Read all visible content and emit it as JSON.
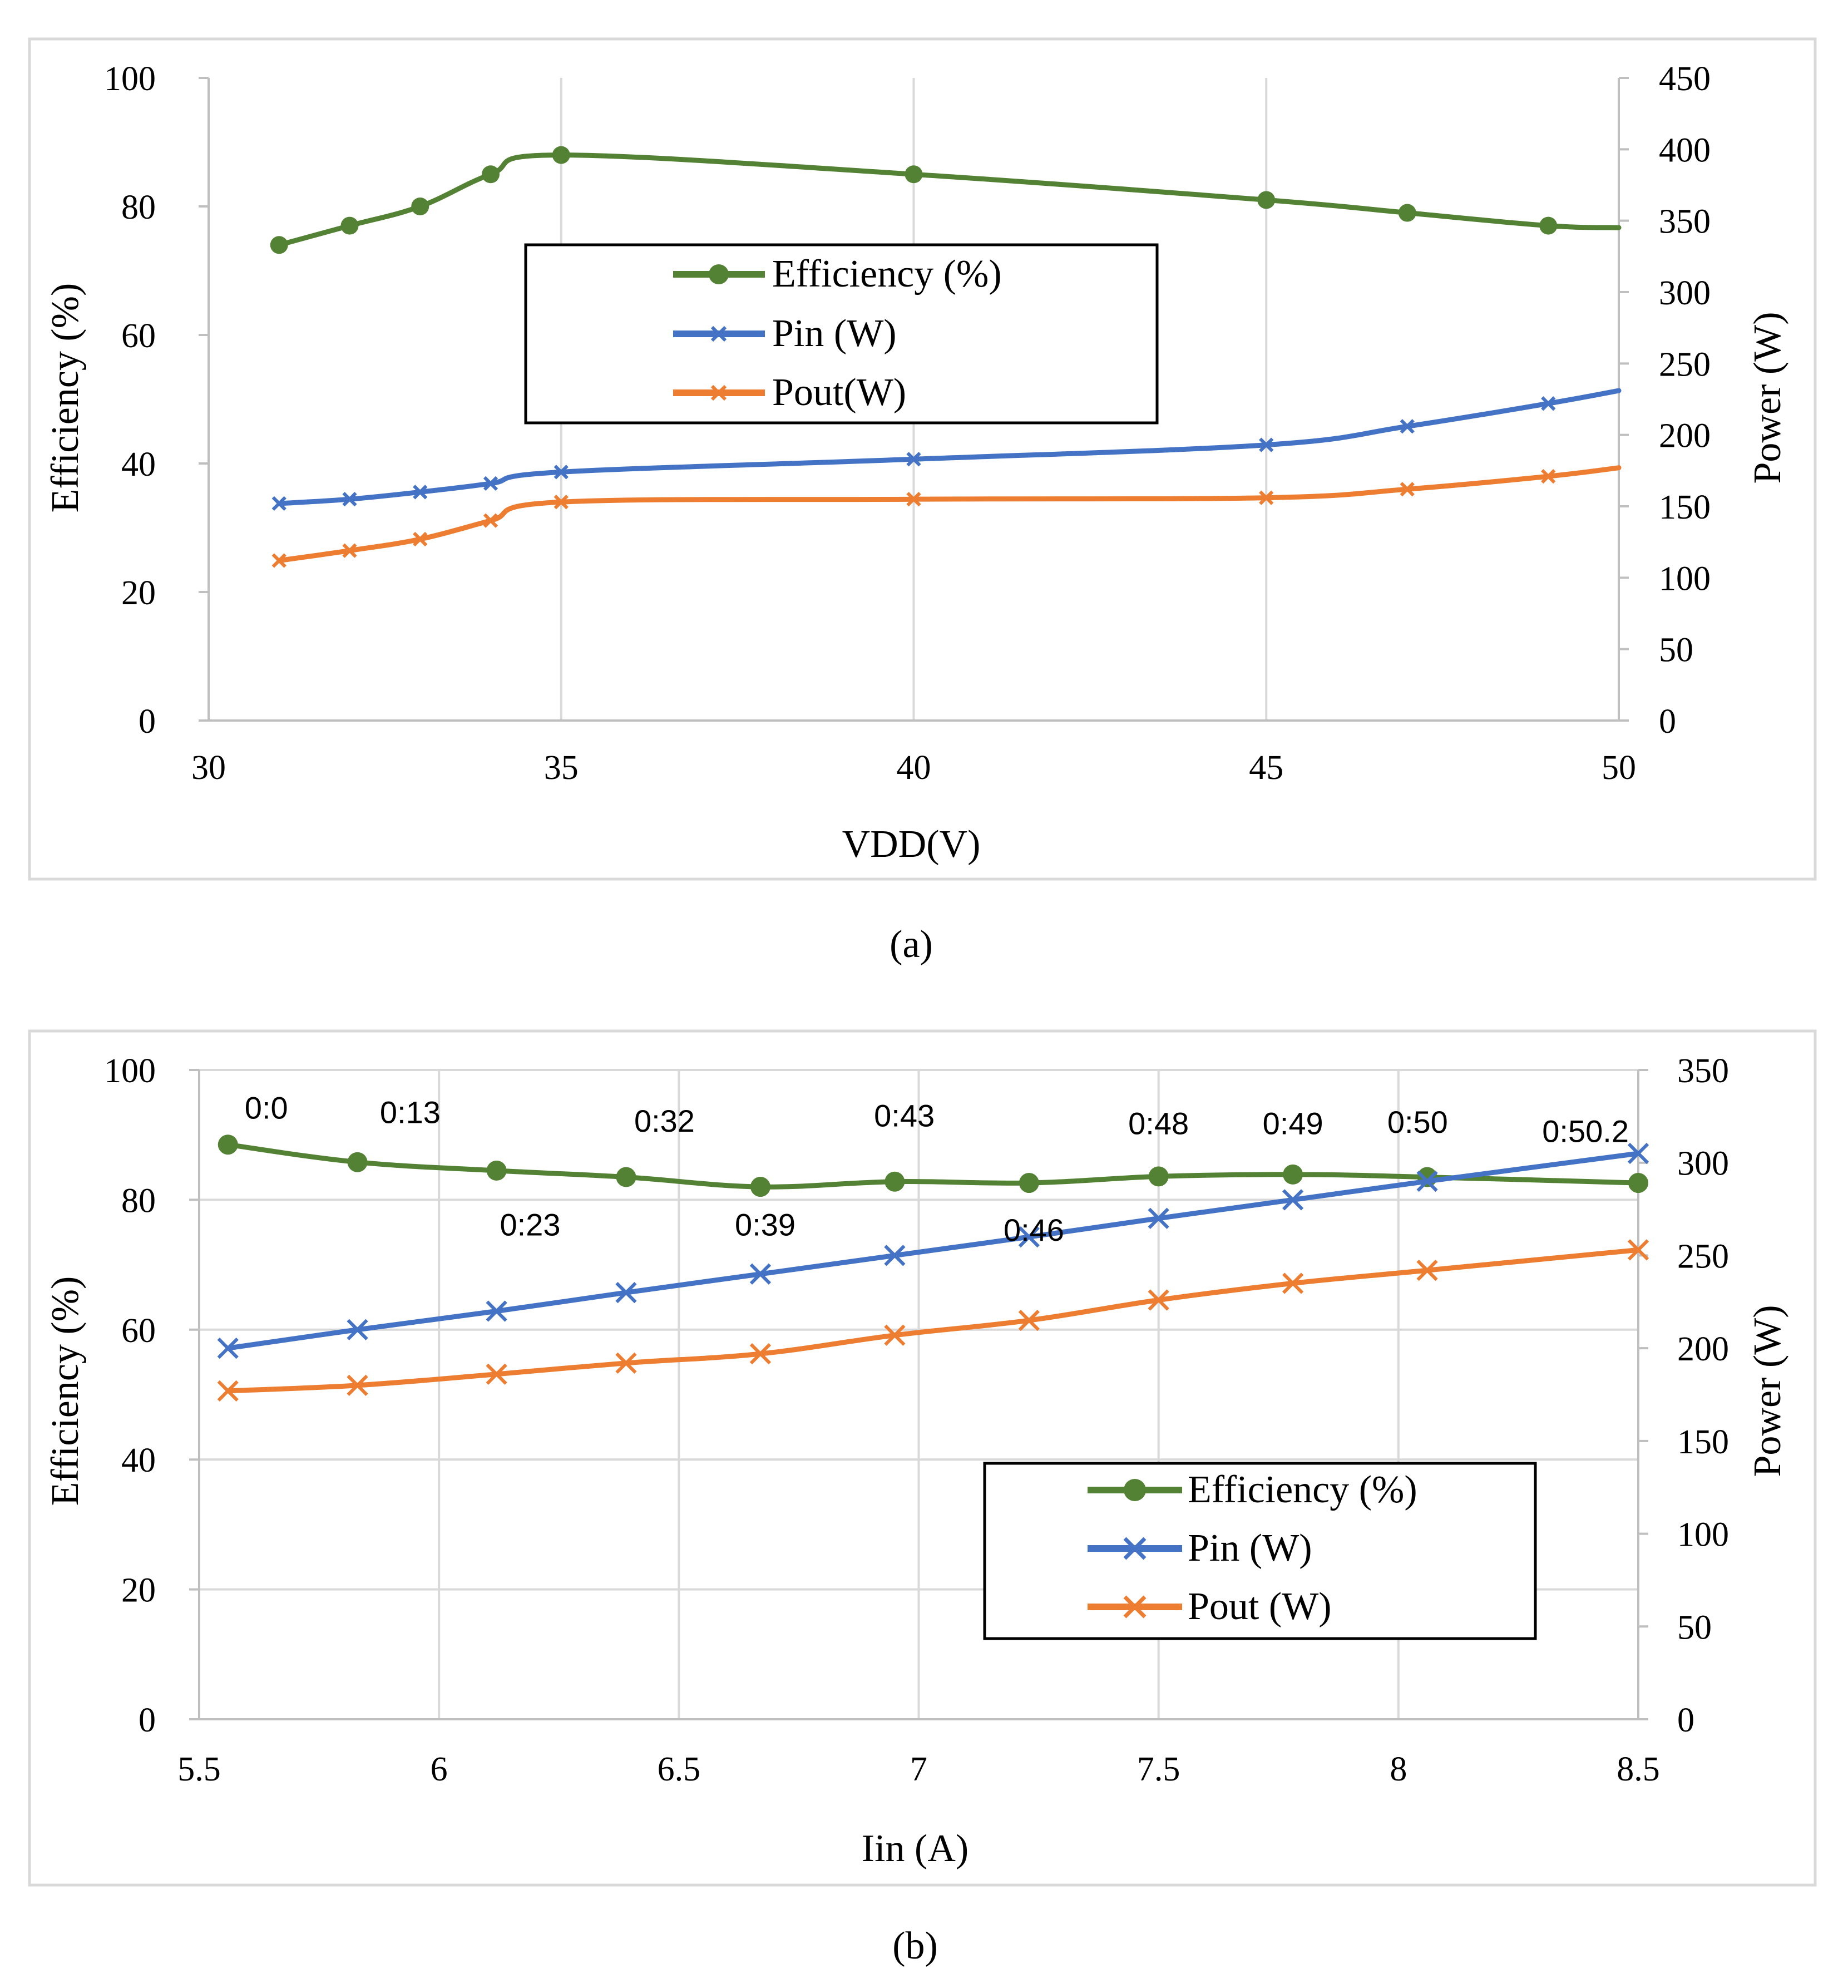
{
  "colors": {
    "efficiency": "#548235",
    "pin": "#4472C4",
    "pout": "#ED7D31",
    "grid": "#d9d9d9",
    "frame": "#d9d9d9",
    "text": "#000000"
  },
  "chart_data": [
    {
      "id": "a",
      "type": "line",
      "caption": "(a)",
      "xlabel": "VDD(V)",
      "ylabel_left": "Efficiency (%)",
      "ylabel_right": "Power (W)",
      "xlim": [
        30,
        50
      ],
      "ylim_left": [
        0,
        100
      ],
      "ylim_right": [
        0,
        450
      ],
      "x_ticks": [
        "30",
        "35",
        "40",
        "45",
        "50"
      ],
      "y_left_ticks": [
        "0",
        "20",
        "40",
        "60",
        "80",
        "100"
      ],
      "y_right_ticks": [
        "0",
        "50",
        "100",
        "150",
        "200",
        "250",
        "300",
        "350",
        "400",
        "450"
      ],
      "grid": "vertical",
      "legend": {
        "position": "center",
        "entries": [
          "Efficiency (%)",
          "Pin (W)",
          "Pout(W)"
        ]
      },
      "series": [
        {
          "name": "Efficiency (%)",
          "axis": "left",
          "marker": "circle",
          "x": [
            31,
            32,
            33,
            34,
            35,
            40,
            45,
            47,
            49,
            50
          ],
          "y": [
            74,
            77,
            80,
            85,
            88,
            85,
            81,
            79,
            77,
            76.7
          ],
          "marker_x": [
            31,
            32,
            33,
            34,
            35,
            40,
            45,
            47,
            49
          ]
        },
        {
          "name": "Pin (W)",
          "axis": "right",
          "marker": "x",
          "x": [
            31,
            32,
            33,
            34,
            35,
            40,
            45,
            47,
            49,
            50
          ],
          "y": [
            152,
            155,
            160,
            166,
            174,
            183,
            193,
            206,
            222,
            231
          ],
          "marker_x": [
            31,
            32,
            33,
            34,
            35,
            40,
            45,
            47,
            49
          ]
        },
        {
          "name": "Pout(W)",
          "axis": "right",
          "marker": "x",
          "x": [
            31,
            32,
            33,
            34,
            35,
            40,
            45,
            47,
            49,
            50
          ],
          "y": [
            112,
            119,
            127,
            140,
            153,
            155,
            156,
            162,
            171,
            177
          ],
          "marker_x": [
            31,
            32,
            33,
            34,
            35,
            40,
            45,
            47,
            49
          ]
        }
      ]
    },
    {
      "id": "b",
      "type": "line",
      "caption": "(b)",
      "xlabel": "Iin (A)",
      "ylabel_left": "Efficiency (%)",
      "ylabel_right": "Power (W)",
      "xlim": [
        5.5,
        8.5
      ],
      "ylim_left": [
        0,
        100
      ],
      "ylim_right": [
        0,
        350
      ],
      "x_ticks": [
        "5.5",
        "6",
        "6.5",
        "7",
        "7.5",
        "8",
        "8.5"
      ],
      "y_left_ticks": [
        "0",
        "20",
        "40",
        "60",
        "80",
        "100"
      ],
      "y_right_ticks": [
        "0",
        "50",
        "100",
        "150",
        "200",
        "250",
        "300",
        "350"
      ],
      "grid": "both",
      "legend": {
        "position": "lower-right",
        "entries": [
          "Efficiency (%)",
          "Pin (W)",
          "Pout (W)"
        ]
      },
      "series": [
        {
          "name": "Efficiency (%)",
          "axis": "left",
          "marker": "circle",
          "x": [
            5.56,
            5.83,
            6.12,
            6.39,
            6.67,
            6.95,
            7.23,
            7.5,
            7.78,
            8.06,
            8.5
          ],
          "y": [
            88.5,
            85.8,
            84.5,
            83.5,
            82,
            82.8,
            82.6,
            83.6,
            83.9,
            83.5,
            82.6
          ]
        },
        {
          "name": "Pin (W)",
          "axis": "right",
          "marker": "x",
          "x": [
            5.56,
            5.83,
            6.12,
            6.39,
            6.67,
            6.95,
            7.23,
            7.5,
            7.78,
            8.06,
            8.5
          ],
          "y": [
            200,
            210,
            220,
            230,
            240,
            250,
            260,
            270,
            280,
            290,
            305
          ]
        },
        {
          "name": "Pout (W)",
          "axis": "right",
          "marker": "x",
          "x": [
            5.56,
            5.83,
            6.12,
            6.39,
            6.67,
            6.95,
            7.23,
            7.5,
            7.78,
            8.06,
            8.5
          ],
          "y": [
            177,
            180,
            186,
            192,
            197,
            207,
            215,
            226,
            235,
            242,
            253
          ]
        }
      ],
      "annotations": [
        {
          "text": "0:0",
          "x": 5.64,
          "eff": 92.5
        },
        {
          "text": "0:13",
          "x": 5.94,
          "eff": 91.8
        },
        {
          "text": "0:23",
          "x": 6.19,
          "eff": 74.5
        },
        {
          "text": "0:32",
          "x": 6.47,
          "eff": 90.5
        },
        {
          "text": "0:39",
          "x": 6.68,
          "eff": 74.5
        },
        {
          "text": "0:43",
          "x": 6.97,
          "eff": 91.3
        },
        {
          "text": "0:46",
          "x": 7.24,
          "eff": 73.7
        },
        {
          "text": "0:48",
          "x": 7.5,
          "eff": 90.1
        },
        {
          "text": "0:49",
          "x": 7.78,
          "eff": 90.1
        },
        {
          "text": "0:50",
          "x": 8.04,
          "eff": 90.3
        },
        {
          "text": "0:50.2",
          "x": 8.39,
          "eff": 88.9
        }
      ]
    }
  ]
}
